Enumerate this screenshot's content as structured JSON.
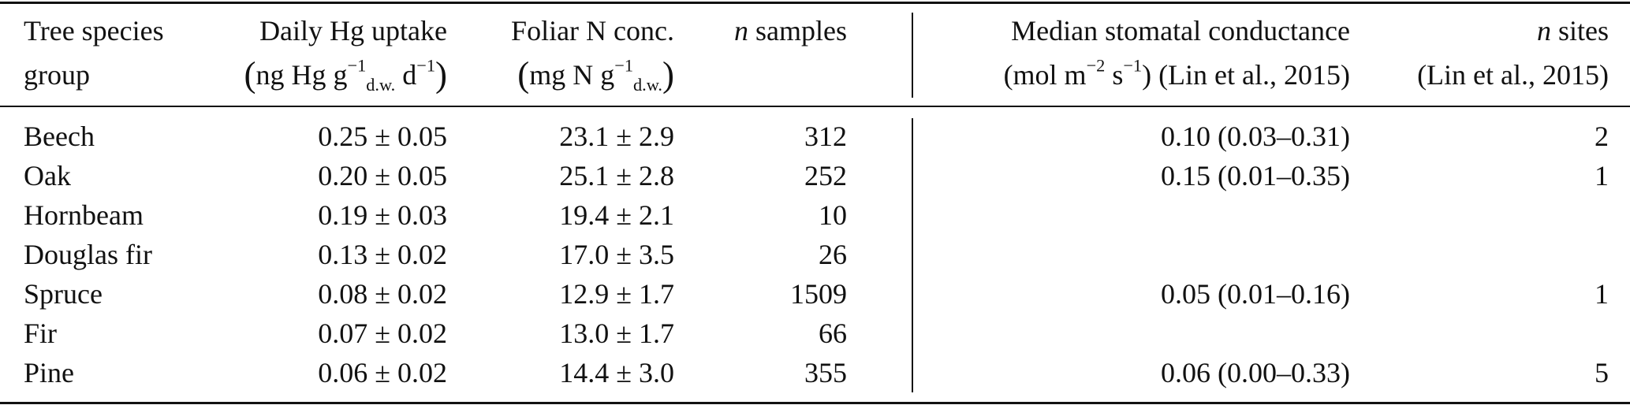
{
  "table": {
    "header": {
      "species_l1": "Tree species",
      "species_l2": "group",
      "uptake_l1": "Daily Hg uptake",
      "uptake_unit": {
        "a": "ng Hg g",
        "exp1": "−1",
        "sub": "d.w.",
        "b": " d",
        "exp2": "−1"
      },
      "n_l1": "Foliar N conc.",
      "n_unit": {
        "a": "mg N g",
        "exp1": "−1",
        "sub": "d.w."
      },
      "samples_n": "n",
      "samples_rest": " samples",
      "cond_l1": "Median stomatal conductance",
      "cond_unit": {
        "a": "(mol m",
        "exp1": "−2",
        "b": " s",
        "exp2": "−1",
        "c": ") (Lin et al., 2015)"
      },
      "sites_n": "n",
      "sites_rest": " sites",
      "sites_l2": "(Lin et al., 2015)"
    },
    "rows": [
      {
        "species": "Beech",
        "uptake": "0.25 ± 0.05",
        "nconc": "23.1 ± 2.9",
        "samples": "312",
        "cond": "0.10 (0.03–0.31)",
        "sites": "2"
      },
      {
        "species": "Oak",
        "uptake": "0.20 ± 0.05",
        "nconc": "25.1 ± 2.8",
        "samples": "252",
        "cond": "0.15 (0.01–0.35)",
        "sites": "1"
      },
      {
        "species": "Hornbeam",
        "uptake": "0.19 ± 0.03",
        "nconc": "19.4 ± 2.1",
        "samples": "10",
        "cond": "",
        "sites": ""
      },
      {
        "species": "Douglas fir",
        "uptake": "0.13 ± 0.02",
        "nconc": "17.0 ± 3.5",
        "samples": "26",
        "cond": "",
        "sites": ""
      },
      {
        "species": "Spruce",
        "uptake": "0.08 ± 0.02",
        "nconc": "12.9 ± 1.7",
        "samples": "1509",
        "cond": "0.05 (0.01–0.16)",
        "sites": "1"
      },
      {
        "species": "Fir",
        "uptake": "0.07 ± 0.02",
        "nconc": "13.0 ± 1.7",
        "samples": "66",
        "cond": "",
        "sites": ""
      },
      {
        "species": "Pine",
        "uptake": "0.06 ± 0.02",
        "nconc": "14.4 ± 3.0",
        "samples": "355",
        "cond": "0.06 (0.00–0.33)",
        "sites": "5"
      }
    ]
  }
}
